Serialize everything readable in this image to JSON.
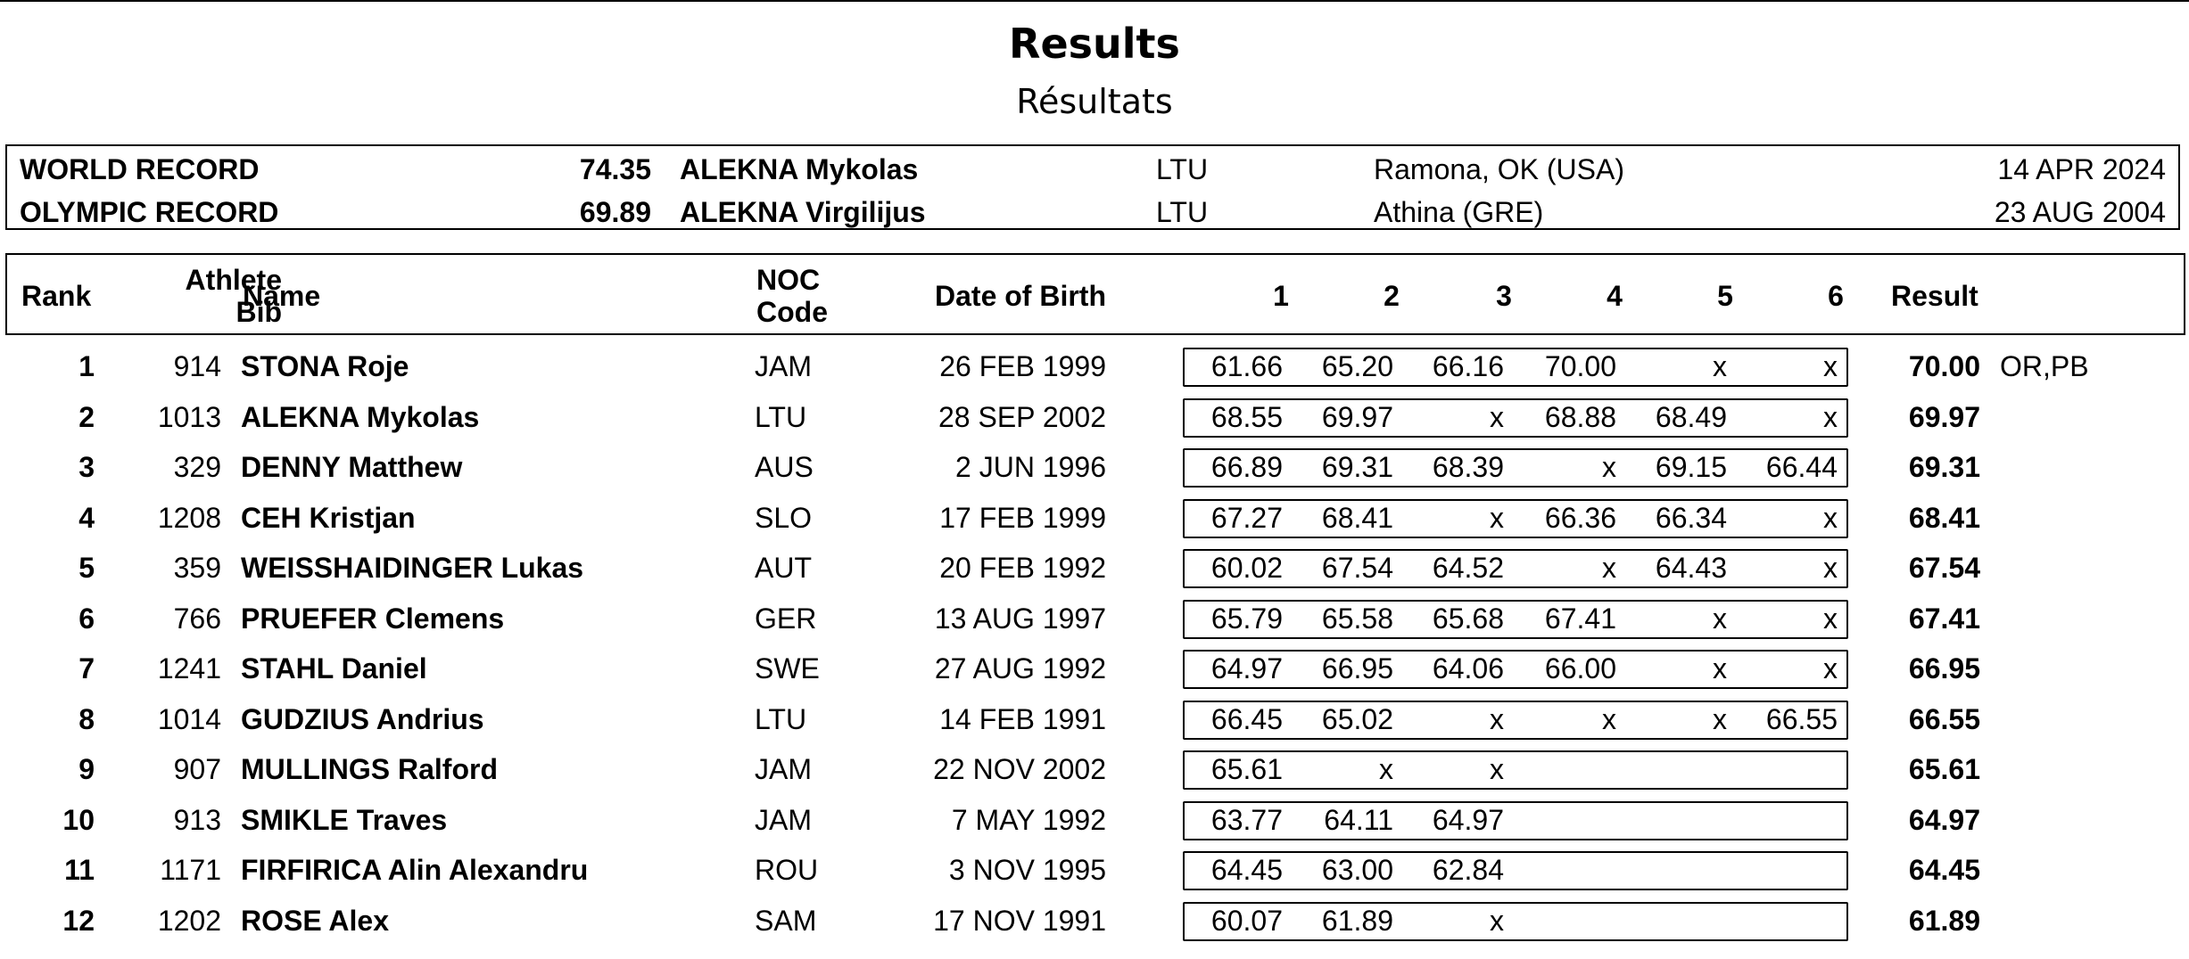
{
  "title": "Results",
  "subtitle": "Résultats",
  "records": [
    {
      "label": "WORLD RECORD",
      "mark": "74.35",
      "athlete": "ALEKNA Mykolas",
      "noc": "LTU",
      "venue": "Ramona, OK (USA)",
      "date": "14 APR 2024"
    },
    {
      "label": "OLYMPIC RECORD",
      "mark": "69.89",
      "athlete": "ALEKNA Virgilijus",
      "noc": "LTU",
      "venue": "Athina (GRE)",
      "date": "23 AUG 2004"
    }
  ],
  "headers": {
    "rank": "Rank",
    "bib_line1": "Athlete",
    "bib_line2": "Bib",
    "name": "Name",
    "noc_line1": "NOC",
    "noc_line2": "Code",
    "dob": "Date of Birth",
    "attempts": [
      "1",
      "2",
      "3",
      "4",
      "5",
      "6"
    ],
    "result": "Result"
  },
  "rows": [
    {
      "rank": "1",
      "bib": "914",
      "name": "STONA Roje",
      "noc": "JAM",
      "dob": "26 FEB 1999",
      "attempts": [
        "61.66",
        "65.20",
        "66.16",
        "70.00",
        "x",
        "x"
      ],
      "result": "70.00",
      "notes": "OR,PB"
    },
    {
      "rank": "2",
      "bib": "1013",
      "name": "ALEKNA Mykolas",
      "noc": "LTU",
      "dob": "28 SEP 2002",
      "attempts": [
        "68.55",
        "69.97",
        "x",
        "68.88",
        "68.49",
        "x"
      ],
      "result": "69.97",
      "notes": ""
    },
    {
      "rank": "3",
      "bib": "329",
      "name": "DENNY Matthew",
      "noc": "AUS",
      "dob": "2 JUN 1996",
      "attempts": [
        "66.89",
        "69.31",
        "68.39",
        "x",
        "69.15",
        "66.44"
      ],
      "result": "69.31",
      "notes": ""
    },
    {
      "rank": "4",
      "bib": "1208",
      "name": "CEH Kristjan",
      "noc": "SLO",
      "dob": "17 FEB 1999",
      "attempts": [
        "67.27",
        "68.41",
        "x",
        "66.36",
        "66.34",
        "x"
      ],
      "result": "68.41",
      "notes": ""
    },
    {
      "rank": "5",
      "bib": "359",
      "name": "WEISSHAIDINGER Lukas",
      "noc": "AUT",
      "dob": "20 FEB 1992",
      "attempts": [
        "60.02",
        "67.54",
        "64.52",
        "x",
        "64.43",
        "x"
      ],
      "result": "67.54",
      "notes": ""
    },
    {
      "rank": "6",
      "bib": "766",
      "name": "PRUEFER Clemens",
      "noc": "GER",
      "dob": "13 AUG 1997",
      "attempts": [
        "65.79",
        "65.58",
        "65.68",
        "67.41",
        "x",
        "x"
      ],
      "result": "67.41",
      "notes": ""
    },
    {
      "rank": "7",
      "bib": "1241",
      "name": "STAHL Daniel",
      "noc": "SWE",
      "dob": "27 AUG 1992",
      "attempts": [
        "64.97",
        "66.95",
        "64.06",
        "66.00",
        "x",
        "x"
      ],
      "result": "66.95",
      "notes": ""
    },
    {
      "rank": "8",
      "bib": "1014",
      "name": "GUDZIUS Andrius",
      "noc": "LTU",
      "dob": "14 FEB 1991",
      "attempts": [
        "66.45",
        "65.02",
        "x",
        "x",
        "x",
        "66.55"
      ],
      "result": "66.55",
      "notes": ""
    },
    {
      "rank": "9",
      "bib": "907",
      "name": "MULLINGS Ralford",
      "noc": "JAM",
      "dob": "22 NOV 2002",
      "attempts": [
        "65.61",
        "x",
        "x",
        "",
        "",
        ""
      ],
      "result": "65.61",
      "notes": ""
    },
    {
      "rank": "10",
      "bib": "913",
      "name": "SMIKLE Traves",
      "noc": "JAM",
      "dob": "7 MAY 1992",
      "attempts": [
        "63.77",
        "64.11",
        "64.97",
        "",
        "",
        ""
      ],
      "result": "64.97",
      "notes": ""
    },
    {
      "rank": "11",
      "bib": "1171",
      "name": "FIRFIRICA Alin Alexandru",
      "noc": "ROU",
      "dob": "3 NOV 1995",
      "attempts": [
        "64.45",
        "63.00",
        "62.84",
        "",
        "",
        ""
      ],
      "result": "64.45",
      "notes": ""
    },
    {
      "rank": "12",
      "bib": "1202",
      "name": "ROSE Alex",
      "noc": "SAM",
      "dob": "17 NOV 1991",
      "attempts": [
        "60.07",
        "61.89",
        "x",
        "",
        "",
        ""
      ],
      "result": "61.89",
      "notes": ""
    }
  ]
}
